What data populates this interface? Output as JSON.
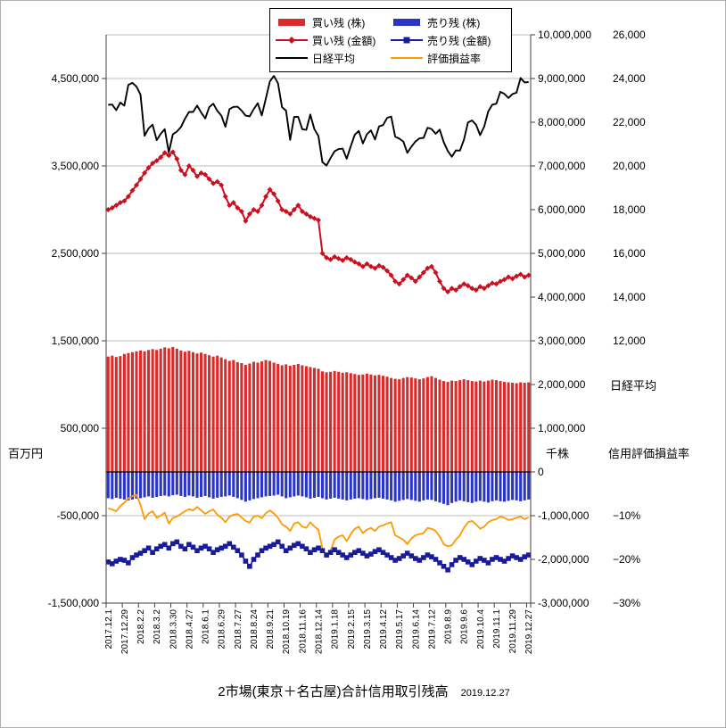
{
  "page": {
    "title": "2市場(東京＋名古屋)合計信用取引残高",
    "title_date": "2019.12.27"
  },
  "legend": {
    "items": [
      {
        "key": "buy-shares",
        "label": "買い残 (株)",
        "swatch": "bar",
        "color": "#d92b2b"
      },
      {
        "key": "buy-value",
        "label": "買い残 (金額)",
        "swatch": "line-diamond",
        "color": "#cc0f1e"
      },
      {
        "key": "nikkei",
        "label": "日経平均",
        "swatch": "line",
        "color": "#000000"
      },
      {
        "key": "sell-shares",
        "label": "売り残 (株)",
        "swatch": "bar",
        "color": "#2a35c4"
      },
      {
        "key": "sell-value",
        "label": "売り残 (金額)",
        "swatch": "line-square",
        "color": "#181c9c"
      },
      {
        "key": "pl-ratio",
        "label": "評価損益率",
        "swatch": "line",
        "color": "#ff9900"
      }
    ]
  },
  "chart_data": {
    "type": "combo",
    "title": "2市場(東京＋名古屋)合計信用取引残高",
    "as_of": "2019.12.27",
    "label_every": 4,
    "n_points": 105,
    "x_tick_labels": [
      "2017.12.1",
      "2017.12.29",
      "2018.2.2",
      "2018.3.2",
      "2018.3.30",
      "2018.4.27",
      "2018.6.1",
      "2018.6.29",
      "2018.7.27",
      "2018.8.24",
      "2018.9.21",
      "2018.10.19",
      "2018.11.16",
      "2018.12.14",
      "2019.1.18",
      "2019.2.15",
      "2019.3.15",
      "2019.4.12",
      "2019.5.17",
      "2019.6.14",
      "2019.7.12",
      "2019.8.9",
      "2019.9.6",
      "2019.10.4",
      "2019.11.1",
      "2019.11.29",
      "2019.12.27"
    ],
    "axes": {
      "yen": {
        "title": "百万円",
        "range": [
          -1500000,
          5000000
        ],
        "ticks": {
          "values": [
            4500000,
            3500000,
            2500000,
            1500000,
            500000,
            -500000,
            -1500000
          ],
          "labels": [
            "4,500,000",
            "3,500,000",
            "2,500,000",
            "1,500,000",
            "500,000",
            "-500,000",
            "-1,500,000"
          ]
        }
      },
      "shares": {
        "title": "千株",
        "range": [
          -3000000,
          10000000
        ],
        "ticks": {
          "values": [
            10000000,
            9000000,
            8000000,
            7000000,
            6000000,
            5000000,
            4000000,
            3000000,
            2000000,
            1000000,
            0,
            -1000000,
            -2000000,
            -3000000
          ],
          "labels": [
            "10,000,000",
            "9,000,000",
            "8,000,000",
            "7,000,000",
            "6,000,000",
            "5,000,000",
            "4,000,000",
            "3,000,000",
            "2,000,000",
            "1,000,000",
            "0",
            "-1,000,000",
            "-2,000,000",
            "-3,000,000"
          ]
        }
      },
      "nikkei": {
        "title": "日経平均",
        "range": [
          0,
          26000
        ],
        "ticks": {
          "values": [
            26000,
            24000,
            22000,
            20000,
            18000,
            16000,
            14000,
            12000
          ],
          "labels": [
            "26,000",
            "24,000",
            "22,000",
            "20,000",
            "18,000",
            "16,000",
            "14,000",
            "12,000"
          ]
        }
      },
      "percent": {
        "title": "信用評価損益率",
        "range": [
          -30,
          100
        ],
        "ticks": {
          "values": [
            -10,
            -20,
            -30
          ],
          "labels": [
            "−10%",
            "−20%",
            "−30%"
          ]
        }
      }
    },
    "series": [
      {
        "key": "buy-shares",
        "name": "買い残 (株)",
        "type": "bar",
        "axis": "shares",
        "color": "#d92b2b",
        "values": [
          2640000,
          2660000,
          2630000,
          2650000,
          2700000,
          2720000,
          2740000,
          2760000,
          2780000,
          2760000,
          2790000,
          2810000,
          2790000,
          2820000,
          2850000,
          2830000,
          2860000,
          2820000,
          2780000,
          2750000,
          2770000,
          2740000,
          2710000,
          2730000,
          2700000,
          2670000,
          2640000,
          2660000,
          2620000,
          2580000,
          2540000,
          2560000,
          2510000,
          2490000,
          2450000,
          2480000,
          2520000,
          2500000,
          2530000,
          2560000,
          2540000,
          2500000,
          2470000,
          2440000,
          2460000,
          2430000,
          2450000,
          2470000,
          2440000,
          2420000,
          2400000,
          2380000,
          2360000,
          2300000,
          2280000,
          2290000,
          2310000,
          2290000,
          2270000,
          2280000,
          2260000,
          2240000,
          2220000,
          2230000,
          2250000,
          2230000,
          2210000,
          2220000,
          2200000,
          2180000,
          2150000,
          2130000,
          2120000,
          2150000,
          2170000,
          2160000,
          2140000,
          2120000,
          2140000,
          2170000,
          2190000,
          2150000,
          2110000,
          2080000,
          2060000,
          2090000,
          2080000,
          2100000,
          2120000,
          2100000,
          2080000,
          2070000,
          2090000,
          2070000,
          2090000,
          2110000,
          2100000,
          2080000,
          2060000,
          2050000,
          2040000,
          2030000,
          2050000,
          2040000,
          2050000
        ]
      },
      {
        "key": "sell-shares",
        "name": "売り残 (株)",
        "type": "bar",
        "axis": "shares",
        "color": "#2a35c4",
        "values": [
          -600000,
          -620000,
          -590000,
          -610000,
          -630000,
          -650000,
          -630000,
          -610000,
          -600000,
          -580000,
          -560000,
          -590000,
          -570000,
          -550000,
          -540000,
          -560000,
          -530000,
          -520000,
          -550000,
          -570000,
          -540000,
          -560000,
          -590000,
          -570000,
          -550000,
          -580000,
          -610000,
          -590000,
          -570000,
          -560000,
          -540000,
          -570000,
          -600000,
          -640000,
          -680000,
          -650000,
          -620000,
          -600000,
          -580000,
          -560000,
          -550000,
          -540000,
          -520000,
          -560000,
          -600000,
          -580000,
          -560000,
          -540000,
          -560000,
          -580000,
          -610000,
          -590000,
          -570000,
          -600000,
          -630000,
          -610000,
          -590000,
          -610000,
          -630000,
          -650000,
          -630000,
          -610000,
          -600000,
          -620000,
          -640000,
          -620000,
          -600000,
          -590000,
          -610000,
          -630000,
          -650000,
          -680000,
          -660000,
          -640000,
          -620000,
          -640000,
          -660000,
          -680000,
          -650000,
          -630000,
          -640000,
          -670000,
          -700000,
          -730000,
          -760000,
          -710000,
          -680000,
          -650000,
          -670000,
          -690000,
          -710000,
          -680000,
          -660000,
          -680000,
          -700000,
          -670000,
          -650000,
          -670000,
          -680000,
          -660000,
          -640000,
          -650000,
          -670000,
          -650000,
          -630000
        ]
      },
      {
        "key": "pl-ratio",
        "name": "評価損益率",
        "type": "line",
        "axis": "percent",
        "color": "#ff9900",
        "width": 1.8,
        "values": [
          -8.3,
          -8.6,
          -9,
          -7.8,
          -7,
          -6,
          -5.5,
          -5.2,
          -7.5,
          -10.8,
          -9.5,
          -9,
          -10.5,
          -10,
          -9.3,
          -11.8,
          -10.5,
          -10.2,
          -9.6,
          -9,
          -8.5,
          -8.8,
          -8,
          -8.8,
          -9.6,
          -9,
          -8.6,
          -9.8,
          -10.5,
          -11.5,
          -10.2,
          -9.8,
          -9.6,
          -10.4,
          -11.2,
          -11.6,
          -10.2,
          -10,
          -10.6,
          -9.4,
          -8.8,
          -9.5,
          -10.5,
          -12,
          -12.5,
          -13.5,
          -11.8,
          -11.5,
          -12.5,
          -12.8,
          -11.5,
          -12.5,
          -13.2,
          -17.5,
          -19.5,
          -18,
          -15.5,
          -14.8,
          -14.5,
          -15.8,
          -14.2,
          -13,
          -12.5,
          -14,
          -13.2,
          -12.8,
          -13.5,
          -12.5,
          -12.2,
          -11.8,
          -11.5,
          -14.5,
          -15,
          -15.5,
          -16.5,
          -15.2,
          -14.5,
          -14.2,
          -14,
          -12.8,
          -13,
          -13.5,
          -14.8,
          -16.5,
          -17,
          -16.8,
          -15.5,
          -14.5,
          -12.8,
          -11.5,
          -11.2,
          -12,
          -13,
          -12.5,
          -11.5,
          -11,
          -10.8,
          -10.2,
          -10.5,
          -11,
          -10.8,
          -10.5,
          -10.2,
          -10.8,
          -10.4
        ]
      },
      {
        "key": "sell-value",
        "name": "売り残 (金額)",
        "type": "line",
        "marker": "square",
        "axis": "yen",
        "color": "#181c9c",
        "width": 1.6,
        "values": [
          -1030000,
          -1050000,
          -1020000,
          -1000000,
          -1010000,
          -1040000,
          -980000,
          -950000,
          -930000,
          -900000,
          -870000,
          -920000,
          -880000,
          -850000,
          -830000,
          -870000,
          -820000,
          -800000,
          -850000,
          -880000,
          -830000,
          -860000,
          -900000,
          -870000,
          -850000,
          -880000,
          -920000,
          -890000,
          -870000,
          -850000,
          -820000,
          -860000,
          -900000,
          -950000,
          -1020000,
          -1080000,
          -1000000,
          -950000,
          -900000,
          -870000,
          -850000,
          -830000,
          -800000,
          -850000,
          -900000,
          -870000,
          -840000,
          -820000,
          -850000,
          -880000,
          -920000,
          -890000,
          -870000,
          -900000,
          -950000,
          -920000,
          -890000,
          -920000,
          -950000,
          -980000,
          -950000,
          -920000,
          -900000,
          -930000,
          -960000,
          -940000,
          -910000,
          -890000,
          -920000,
          -950000,
          -980000,
          -1010000,
          -990000,
          -960000,
          -930000,
          -960000,
          -990000,
          -1010000,
          -980000,
          -950000,
          -970000,
          -1000000,
          -1040000,
          -1080000,
          -1120000,
          -1060000,
          -1010000,
          -980000,
          -1000000,
          -1030000,
          -1060000,
          -1020000,
          -990000,
          -1010000,
          -1040000,
          -1000000,
          -980000,
          -1000000,
          -1020000,
          -990000,
          -960000,
          -980000,
          -1000000,
          -970000,
          -950000
        ]
      },
      {
        "key": "buy-value",
        "name": "買い残 (金額)",
        "type": "line",
        "marker": "diamond",
        "axis": "yen",
        "color": "#cc0f1e",
        "width": 2,
        "values": [
          3000000,
          3020000,
          3050000,
          3080000,
          3100000,
          3150000,
          3220000,
          3280000,
          3350000,
          3420000,
          3480000,
          3530000,
          3560000,
          3600000,
          3650000,
          3620000,
          3660000,
          3580000,
          3450000,
          3400000,
          3500000,
          3450000,
          3380000,
          3420000,
          3400000,
          3350000,
          3300000,
          3320000,
          3280000,
          3150000,
          3050000,
          3080000,
          3020000,
          2980000,
          2870000,
          2950000,
          3000000,
          2980000,
          3050000,
          3150000,
          3230000,
          3180000,
          3100000,
          3000000,
          2980000,
          2950000,
          3000000,
          3050000,
          2980000,
          2950000,
          2920000,
          2900000,
          2880000,
          2500000,
          2450000,
          2430000,
          2460000,
          2440000,
          2420000,
          2450000,
          2430000,
          2400000,
          2380000,
          2350000,
          2380000,
          2350000,
          2330000,
          2360000,
          2340000,
          2300000,
          2250000,
          2180000,
          2150000,
          2200000,
          2250000,
          2220000,
          2180000,
          2230000,
          2280000,
          2330000,
          2350000,
          2280000,
          2180000,
          2100000,
          2060000,
          2100000,
          2080000,
          2120000,
          2150000,
          2130000,
          2100000,
          2080000,
          2120000,
          2100000,
          2130000,
          2160000,
          2150000,
          2180000,
          2200000,
          2230000,
          2210000,
          2240000,
          2260000,
          2230000,
          2250000
        ]
      },
      {
        "key": "nikkei",
        "name": "日経平均",
        "type": "line",
        "axis": "nikkei",
        "color": "#000000",
        "width": 1.9,
        "values": [
          22800,
          22810,
          22550,
          22900,
          22760,
          23710,
          23800,
          23630,
          23270,
          21380,
          21720,
          21890,
          21180,
          21470,
          21680,
          20620,
          21450,
          21570,
          21780,
          22160,
          22470,
          22470,
          22760,
          22450,
          22170,
          22690,
          22850,
          22520,
          22300,
          21790,
          22600,
          22700,
          22710,
          22530,
          22300,
          22270,
          22600,
          22870,
          22310,
          23090,
          23870,
          24120,
          23780,
          22690,
          22530,
          21190,
          22240,
          22250,
          21680,
          21650,
          22350,
          21680,
          21370,
          20170,
          20020,
          20360,
          20670,
          20770,
          20790,
          20330,
          20900,
          21430,
          21600,
          21030,
          21450,
          21630,
          21210,
          21810,
          21870,
          22200,
          22260,
          21340,
          21250,
          21120,
          20600,
          20880,
          21120,
          21260,
          21280,
          21750,
          21690,
          21470,
          21660,
          21090,
          20680,
          20420,
          20710,
          20700,
          21200,
          21990,
          22080,
          21880,
          21410,
          21800,
          22490,
          22800,
          22850,
          23390,
          23300,
          23110,
          23290,
          23350,
          24020,
          23820,
          23840
        ]
      }
    ]
  }
}
